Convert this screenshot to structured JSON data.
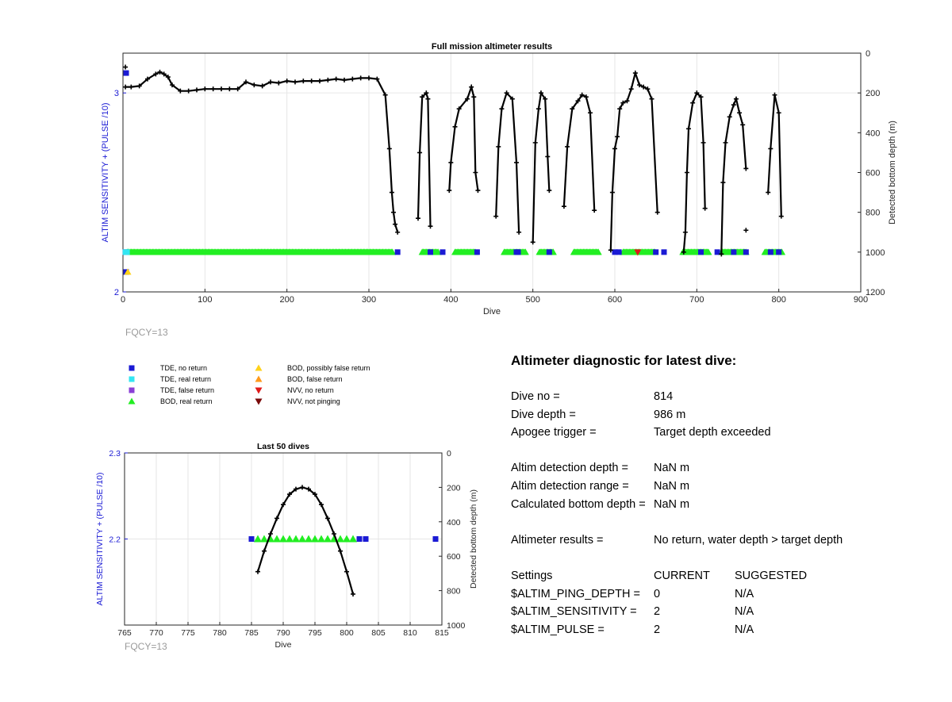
{
  "chart_data": [
    {
      "type": "scatter",
      "title": "Full mission altimeter results",
      "xlabel": "Dive",
      "ylabel": "ALTIM SENSITIVITY + (PULSE /10)",
      "y2label": "Detected bottom depth (m)",
      "xlim": [
        0,
        900
      ],
      "ylim": [
        2,
        3.2
      ],
      "y2lim": [
        1200,
        0
      ],
      "xticks": [
        "0",
        "100",
        "200",
        "300",
        "400",
        "500",
        "600",
        "700",
        "800",
        "900"
      ],
      "yticks": [
        "2",
        "3"
      ],
      "y2ticks": [
        "0",
        "200",
        "400",
        "600",
        "800",
        "1000",
        "1200"
      ],
      "grid": true,
      "depth_line": [
        {
          "x": [
            3,
            10,
            20,
            30,
            40,
            45,
            50,
            55,
            60,
            70,
            80,
            90,
            100,
            110,
            120,
            130,
            140,
            150,
            160,
            170,
            180,
            190,
            200,
            210,
            220,
            230,
            240,
            250,
            260,
            270,
            280,
            290,
            300,
            310,
            320,
            325,
            328,
            330,
            332,
            335
          ],
          "y": [
            170,
            170,
            165,
            130,
            105,
            95,
            105,
            120,
            160,
            190,
            190,
            185,
            180,
            180,
            180,
            180,
            180,
            145,
            160,
            165,
            145,
            150,
            140,
            145,
            140,
            140,
            140,
            135,
            130,
            135,
            130,
            125,
            125,
            130,
            210,
            480,
            700,
            800,
            860,
            900
          ]
        },
        {
          "x": [
            360,
            362,
            365,
            370,
            372,
            375
          ],
          "y": [
            830,
            500,
            220,
            200,
            230,
            870
          ]
        },
        {
          "x": [
            398,
            400,
            405,
            410,
            420,
            425,
            428,
            430,
            433
          ],
          "y": [
            690,
            550,
            370,
            280,
            230,
            170,
            220,
            600,
            690
          ]
        },
        {
          "x": [
            455,
            458,
            462,
            468,
            475,
            480,
            483
          ],
          "y": [
            820,
            470,
            280,
            200,
            230,
            550,
            900
          ]
        },
        {
          "x": [
            500,
            503,
            507,
            510,
            515,
            518,
            520
          ],
          "y": [
            950,
            450,
            280,
            200,
            230,
            520,
            690
          ]
        },
        {
          "x": [
            538,
            542,
            548,
            555,
            560,
            565,
            570,
            575
          ],
          "y": [
            770,
            470,
            280,
            240,
            210,
            220,
            300,
            790
          ]
        },
        {
          "x": [
            595,
            597,
            600,
            603,
            606,
            610,
            615,
            620,
            625,
            630,
            635,
            640,
            645,
            652
          ],
          "y": [
            990,
            700,
            480,
            420,
            280,
            250,
            240,
            180,
            100,
            160,
            170,
            180,
            230,
            800
          ]
        },
        {
          "x": [
            684,
            686,
            688,
            690,
            695,
            700,
            705,
            708,
            710
          ],
          "y": [
            1000,
            900,
            600,
            380,
            250,
            200,
            220,
            450,
            780
          ]
        },
        {
          "x": [
            730,
            732,
            735,
            740,
            745,
            748,
            752,
            756,
            760
          ],
          "y": [
            1010,
            650,
            450,
            320,
            260,
            230,
            300,
            360,
            580
          ]
        },
        {
          "x": [
            787,
            790,
            795,
            800,
            803
          ],
          "y": [
            700,
            480,
            210,
            300,
            820
          ]
        }
      ],
      "extra_points": [
        {
          "x": 3,
          "y": 70
        },
        {
          "x": 760,
          "y": 890
        }
      ],
      "sensitivity_series": [
        {
          "name": "BOD, real return",
          "x_ranges": [
            [
              5,
              330
            ],
            [
              365,
              385
            ],
            [
              405,
              430
            ],
            [
              465,
              492
            ],
            [
              508,
              525
            ],
            [
              550,
              580
            ],
            [
              610,
              650
            ],
            [
              683,
              715
            ],
            [
              730,
              760
            ],
            [
              783,
              805
            ]
          ],
          "y": 2.2
        },
        {
          "name": "TDE, no return",
          "x": [
            3,
            335,
            375,
            390,
            432,
            480,
            482,
            520,
            600,
            605,
            650,
            660,
            705,
            725,
            745,
            760,
            790,
            800
          ],
          "y": 2.2
        },
        {
          "name": "TDE, real return",
          "x": [
            3,
            5
          ],
          "y": 2.2
        }
      ],
      "extra_series_points": [
        {
          "name": "TDE, no return",
          "x": 1,
          "y": 3.1
        },
        {
          "name": "TDE, no return",
          "x": 1,
          "y": 2.1
        },
        {
          "name": "BOD, possibly false return",
          "x": 3,
          "y": 2.1
        },
        {
          "name": "NVV, no return",
          "x": 625,
          "y": 2.2
        }
      ]
    },
    {
      "type": "scatter",
      "title": "Last 50 dives",
      "xlabel": "Dive",
      "ylabel": "ALTIM SENSITIVITY + (PULSE /10)",
      "y2label": "Detected bottom depth (m)",
      "xlim": [
        765,
        815
      ],
      "ylim": [
        2.1,
        2.3
      ],
      "y2lim": [
        1000,
        0
      ],
      "xticks": [
        "765",
        "770",
        "775",
        "780",
        "785",
        "790",
        "795",
        "800",
        "805",
        "810",
        "815"
      ],
      "yticks": [
        "2.2",
        "2.3"
      ],
      "y2ticks": [
        "0",
        "200",
        "400",
        "600",
        "800",
        "1000"
      ],
      "grid": true,
      "depth_line": {
        "x": [
          786,
          787,
          788,
          789,
          790,
          791,
          792,
          793,
          794,
          795,
          796,
          797,
          798,
          799,
          800,
          801
        ],
        "y": [
          690,
          570,
          470,
          380,
          300,
          240,
          210,
          200,
          210,
          240,
          300,
          380,
          470,
          570,
          690,
          820
        ]
      },
      "sensitivity_series": [
        {
          "name": "TDE, no return",
          "x": [
            785,
            802,
            803,
            814
          ],
          "y": 2.2
        },
        {
          "name": "BOD, real return",
          "x": [
            786,
            787,
            788,
            789,
            790,
            791,
            792,
            793,
            794,
            795,
            796,
            797,
            798,
            799,
            800,
            801
          ],
          "y": 2.2
        }
      ]
    }
  ],
  "fqcy_top": "FQCY=13",
  "fqcy_bottom": "FQCY=13",
  "legend": [
    {
      "label": "TDE, no return",
      "marker": "square",
      "color": "#1a1ad4"
    },
    {
      "label": "TDE, real return",
      "marker": "square",
      "color": "#33e6f2"
    },
    {
      "label": "TDE, false return",
      "marker": "square",
      "color": "#8a3fd6"
    },
    {
      "label": "BOD, real return",
      "marker": "triangle-up",
      "color": "#22ee22"
    },
    {
      "label": "BOD, possibly false return",
      "marker": "triangle-up",
      "color": "#ffd21a"
    },
    {
      "label": "BOD, false return",
      "marker": "triangle-up",
      "color": "#ff9a1a"
    },
    {
      "label": "NVV, no return",
      "marker": "triangle-down",
      "color": "#e01a1a"
    },
    {
      "label": "NVV, not pinging",
      "marker": "triangle-down",
      "color": "#7a0a0a"
    }
  ],
  "colors": {
    "axis_left": "#1a1ad4",
    "grid": "#e6e6e6",
    "depth_line": "#000000",
    "fq": "#9a9a9a"
  },
  "diagnostic": {
    "title": "Altimeter diagnostic for latest dive:",
    "dive_no_label": "Dive no =",
    "dive_no_value": "814",
    "dive_depth_label": "Dive depth =",
    "dive_depth_value": "986 m",
    "apogee_label": "Apogee trigger =",
    "apogee_value": "Target depth exceeded",
    "altim_depth_label": "Altim detection depth =",
    "altim_depth_value": "NaN m",
    "altim_range_label": "Altim detection range =",
    "altim_range_value": "NaN m",
    "calc_depth_label": "Calculated bottom depth =",
    "calc_depth_value": "NaN m",
    "results_label": "Altimeter results =",
    "results_value": "No return, water depth > target depth",
    "settings_label": "Settings",
    "current_label": "CURRENT",
    "suggested_label": "SUGGESTED",
    "ping_depth_label": "$ALTIM_PING_DEPTH =",
    "ping_depth_current": "0",
    "ping_depth_suggested": "N/A",
    "sensitivity_label": "$ALTIM_SENSITIVITY =",
    "sensitivity_current": "2",
    "sensitivity_suggested": "N/A",
    "pulse_label": "$ALTIM_PULSE =",
    "pulse_current": "2",
    "pulse_suggested": "N/A"
  }
}
